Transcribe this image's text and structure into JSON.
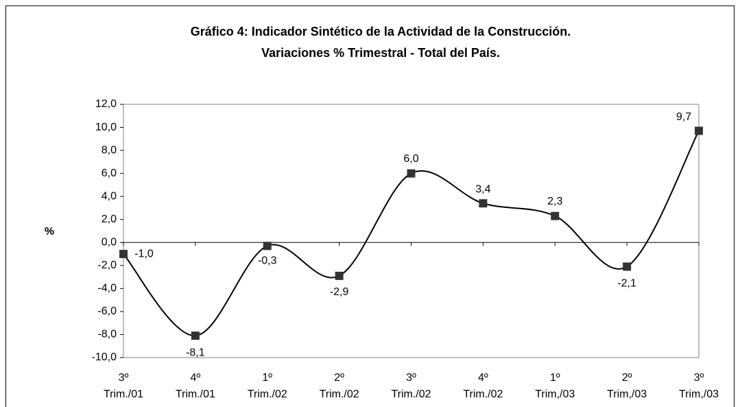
{
  "chart_data": {
    "type": "line",
    "title": [
      "Gráfico 4:  Indicador Sintético de la Actividad de la Construcción.",
      "Variaciones % Trimestral - Total del País."
    ],
    "y_label": "%",
    "categories": [
      [
        "3º",
        "Trim./01"
      ],
      [
        "4º",
        "Trim./01"
      ],
      [
        "1º",
        "Trim./02"
      ],
      [
        "2º",
        "Trim./02"
      ],
      [
        "3º",
        "Trim./02"
      ],
      [
        "4º",
        "Trim./02"
      ],
      [
        "1º",
        "Trim,/03"
      ],
      [
        "2º",
        "Trim,/03"
      ],
      [
        "3º",
        "Trim,/03"
      ]
    ],
    "values": [
      -1.0,
      -8.1,
      -0.3,
      -2.9,
      6.0,
      3.4,
      2.3,
      -2.1,
      9.7
    ],
    "value_labels": [
      "-1,0",
      "-8,1",
      "-0,3",
      "-2,9",
      "6,0",
      "3,4",
      "2,3",
      "-2,1",
      "9,7"
    ],
    "color": "#000000",
    "marker_color": "#333333",
    "smooth": true,
    "ylim": [
      -10,
      12
    ],
    "yticks": [
      {
        "value": -10,
        "label": "-10,0"
      },
      {
        "value": -8,
        "label": "-8,0"
      },
      {
        "value": -6,
        "label": "-6,0"
      },
      {
        "value": -4,
        "label": "-4,0"
      },
      {
        "value": -2,
        "label": "-2,0"
      },
      {
        "value": 0,
        "label": "0,0"
      },
      {
        "value": 2,
        "label": "2,0"
      },
      {
        "value": 4,
        "label": "4,0"
      },
      {
        "value": 6,
        "label": "6,0"
      },
      {
        "value": 8,
        "label": "8,0"
      },
      {
        "value": 10,
        "label": "10,0"
      },
      {
        "value": 12,
        "label": "12,0"
      }
    ]
  }
}
